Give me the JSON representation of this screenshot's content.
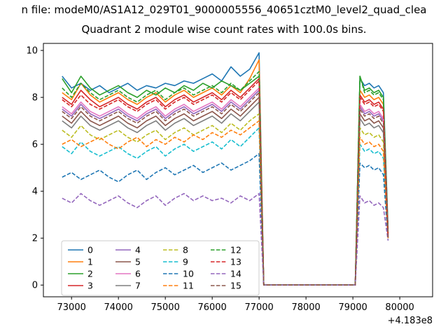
{
  "figure": {
    "suptitle": "n file: modeM0/AS1A12_029T01_9000005556_40651cztM0_level2_quad_clea",
    "title": "Quadrant 2 module wise count rates with 100.0s bins."
  },
  "chart_data": {
    "type": "line",
    "title": "Quadrant 2 module wise count rates with 100.0s bins.",
    "xlabel": "",
    "ylabel": "",
    "xlim": [
      72400,
      80700
    ],
    "ylim": [
      -0.5,
      10.3
    ],
    "x_ticks": [
      73000,
      74000,
      75000,
      76000,
      77000,
      78000,
      79000,
      80000
    ],
    "y_ticks": [
      0,
      2,
      4,
      6,
      8,
      10
    ],
    "x_offset_label": "+4.183e8",
    "grid": false,
    "legend_position": "lower-left",
    "legend_columns": 4,
    "x": [
      72800,
      73000,
      73200,
      73400,
      73600,
      73800,
      74000,
      74200,
      74400,
      74600,
      74800,
      75000,
      75200,
      75400,
      75600,
      75800,
      76000,
      76200,
      76400,
      76600,
      76800,
      77000,
      77100,
      77600,
      78200,
      78800,
      79050,
      79150,
      79250,
      79350,
      79450,
      79550,
      79650,
      79750
    ],
    "series": [
      {
        "name": "0",
        "color": "#1f77b4",
        "linestyle": "solid",
        "y": [
          8.9,
          8.4,
          8.6,
          8.3,
          8.5,
          8.2,
          8.4,
          8.6,
          8.3,
          8.5,
          8.4,
          8.6,
          8.5,
          8.7,
          8.6,
          8.8,
          9.0,
          8.7,
          9.3,
          8.9,
          9.2,
          9.9,
          0,
          0,
          0,
          0,
          0,
          8.8,
          8.5,
          8.6,
          8.4,
          8.5,
          8.2,
          2.4
        ]
      },
      {
        "name": "1",
        "color": "#ff7f0e",
        "linestyle": "solid",
        "y": [
          8.2,
          7.9,
          8.6,
          8.1,
          7.8,
          8.0,
          8.2,
          7.9,
          7.7,
          8.0,
          8.2,
          7.8,
          8.1,
          8.3,
          8.0,
          8.2,
          8.4,
          8.1,
          8.5,
          8.2,
          8.8,
          9.6,
          0,
          0,
          0,
          0,
          0,
          8.3,
          8.0,
          8.1,
          7.9,
          8.0,
          7.7,
          2.2
        ]
      },
      {
        "name": "2",
        "color": "#2ca02c",
        "linestyle": "solid",
        "y": [
          8.8,
          8.2,
          8.9,
          8.4,
          8.1,
          8.3,
          8.5,
          8.2,
          8.0,
          8.3,
          8.1,
          8.4,
          8.2,
          8.5,
          8.3,
          8.6,
          8.4,
          8.7,
          8.5,
          8.3,
          8.6,
          8.9,
          0,
          0,
          0,
          0,
          0,
          8.9,
          8.3,
          8.4,
          8.2,
          8.3,
          8.0,
          2.3
        ]
      },
      {
        "name": "3",
        "color": "#d62728",
        "linestyle": "solid",
        "y": [
          8.0,
          7.7,
          8.3,
          7.9,
          7.6,
          7.8,
          8.0,
          7.7,
          7.5,
          7.8,
          8.0,
          7.6,
          7.9,
          8.1,
          7.8,
          8.0,
          8.2,
          7.9,
          8.3,
          8.0,
          8.4,
          8.8,
          0,
          0,
          0,
          0,
          0,
          8.1,
          7.8,
          7.9,
          7.7,
          7.8,
          7.5,
          2.1
        ]
      },
      {
        "name": "4",
        "color": "#9467bd",
        "linestyle": "solid",
        "y": [
          7.5,
          7.2,
          7.7,
          7.3,
          7.1,
          7.3,
          7.5,
          7.2,
          7.0,
          7.3,
          7.5,
          7.1,
          7.4,
          7.6,
          7.3,
          7.5,
          7.7,
          7.4,
          7.8,
          7.5,
          7.9,
          8.3,
          0,
          0,
          0,
          0,
          0,
          7.6,
          7.3,
          7.4,
          7.2,
          7.3,
          7.0,
          2.0
        ]
      },
      {
        "name": "5",
        "color": "#8c564b",
        "linestyle": "solid",
        "y": [
          7.2,
          6.9,
          7.4,
          7.0,
          6.8,
          7.0,
          7.2,
          6.9,
          6.7,
          7.0,
          7.2,
          6.8,
          7.1,
          7.3,
          7.0,
          7.2,
          7.4,
          7.1,
          7.5,
          7.2,
          7.6,
          8.0,
          0,
          0,
          0,
          0,
          0,
          7.3,
          7.0,
          7.1,
          6.9,
          7.0,
          6.7,
          2.0
        ]
      },
      {
        "name": "6",
        "color": "#e377c2",
        "linestyle": "solid",
        "y": [
          7.6,
          7.3,
          7.8,
          7.4,
          7.2,
          7.4,
          7.6,
          7.3,
          7.1,
          7.4,
          7.6,
          7.2,
          7.5,
          7.7,
          7.4,
          7.6,
          7.8,
          7.5,
          7.9,
          7.6,
          8.0,
          8.4,
          0,
          0,
          0,
          0,
          0,
          7.7,
          7.4,
          7.5,
          7.3,
          7.4,
          7.1,
          2.1
        ]
      },
      {
        "name": "7",
        "color": "#7f7f7f",
        "linestyle": "solid",
        "y": [
          7.0,
          6.7,
          7.2,
          6.8,
          6.6,
          6.8,
          7.0,
          6.7,
          6.5,
          6.8,
          7.0,
          6.6,
          6.9,
          7.1,
          6.8,
          7.0,
          7.2,
          6.9,
          7.3,
          7.0,
          7.4,
          7.8,
          0,
          0,
          0,
          0,
          0,
          7.1,
          6.8,
          6.9,
          6.7,
          6.8,
          6.5,
          2.0
        ]
      },
      {
        "name": "8",
        "color": "#bcbd22",
        "linestyle": "dashed",
        "y": [
          6.6,
          6.3,
          6.8,
          6.4,
          6.2,
          6.4,
          6.6,
          6.3,
          6.1,
          6.4,
          6.6,
          6.2,
          6.5,
          6.7,
          6.4,
          6.6,
          6.8,
          6.5,
          6.9,
          6.6,
          7.0,
          7.3,
          0,
          0,
          0,
          0,
          0,
          6.7,
          6.4,
          6.5,
          6.3,
          6.4,
          6.1,
          2.0
        ]
      },
      {
        "name": "9",
        "color": "#17becf",
        "linestyle": "dashed",
        "y": [
          5.9,
          5.6,
          6.1,
          5.7,
          5.5,
          5.7,
          5.9,
          5.6,
          5.4,
          5.7,
          5.9,
          5.5,
          5.8,
          6.0,
          5.7,
          5.9,
          6.1,
          5.8,
          6.2,
          5.9,
          6.3,
          6.7,
          0,
          0,
          0,
          0,
          0,
          6.0,
          5.7,
          5.8,
          5.6,
          5.7,
          5.4,
          2.0
        ]
      },
      {
        "name": "10",
        "color": "#1f77b4",
        "linestyle": "dashed",
        "y": [
          4.6,
          4.8,
          4.5,
          4.7,
          4.9,
          4.6,
          4.4,
          4.7,
          4.9,
          4.5,
          4.8,
          5.0,
          4.7,
          4.9,
          5.1,
          4.8,
          5.0,
          5.2,
          4.9,
          5.1,
          5.3,
          5.6,
          0,
          0,
          0,
          0,
          0,
          5.2,
          5.0,
          5.1,
          4.9,
          5.0,
          4.7,
          1.9
        ]
      },
      {
        "name": "11",
        "color": "#ff7f0e",
        "linestyle": "dashed",
        "y": [
          6.0,
          6.2,
          5.9,
          6.1,
          6.3,
          6.0,
          5.8,
          6.1,
          6.3,
          5.9,
          6.2,
          6.0,
          6.3,
          6.1,
          6.4,
          6.2,
          6.5,
          6.3,
          6.6,
          6.4,
          6.7,
          7.0,
          0,
          0,
          0,
          0,
          0,
          6.3,
          6.0,
          6.1,
          5.9,
          6.0,
          5.7,
          2.0
        ]
      },
      {
        "name": "12",
        "color": "#2ca02c",
        "linestyle": "dashed",
        "y": [
          8.4,
          8.0,
          8.6,
          8.2,
          7.9,
          8.1,
          8.3,
          8.0,
          7.8,
          8.1,
          8.3,
          7.9,
          8.2,
          8.4,
          8.1,
          8.3,
          8.5,
          8.2,
          8.6,
          8.3,
          8.7,
          9.1,
          0,
          0,
          0,
          0,
          0,
          8.9,
          8.2,
          8.3,
          8.1,
          8.2,
          7.9,
          2.2
        ]
      },
      {
        "name": "13",
        "color": "#d62728",
        "linestyle": "dashed",
        "y": [
          7.9,
          7.6,
          8.1,
          7.7,
          7.5,
          7.7,
          7.9,
          7.6,
          7.4,
          7.7,
          7.9,
          7.5,
          7.8,
          8.0,
          7.7,
          7.9,
          8.1,
          7.8,
          8.2,
          7.9,
          8.3,
          8.7,
          0,
          0,
          0,
          0,
          0,
          8.0,
          7.7,
          7.8,
          7.6,
          7.7,
          7.4,
          2.1
        ]
      },
      {
        "name": "14",
        "color": "#9467bd",
        "linestyle": "dashed",
        "y": [
          3.7,
          3.5,
          3.9,
          3.6,
          3.4,
          3.6,
          3.8,
          3.5,
          3.3,
          3.6,
          3.8,
          3.4,
          3.7,
          3.9,
          3.6,
          3.8,
          3.6,
          3.7,
          3.5,
          3.8,
          3.6,
          3.9,
          0,
          0,
          0,
          0,
          0,
          3.8,
          3.5,
          3.6,
          3.4,
          3.5,
          3.3,
          1.9
        ]
      },
      {
        "name": "15",
        "color": "#8c564b",
        "linestyle": "dashed",
        "y": [
          7.4,
          7.1,
          7.6,
          7.2,
          7.0,
          7.2,
          7.4,
          7.1,
          6.9,
          7.2,
          7.4,
          7.0,
          7.3,
          7.5,
          7.2,
          7.4,
          7.6,
          7.3,
          7.7,
          7.4,
          7.8,
          8.2,
          0,
          0,
          0,
          0,
          0,
          7.5,
          7.2,
          7.3,
          7.1,
          7.2,
          6.9,
          2.0
        ]
      }
    ]
  }
}
